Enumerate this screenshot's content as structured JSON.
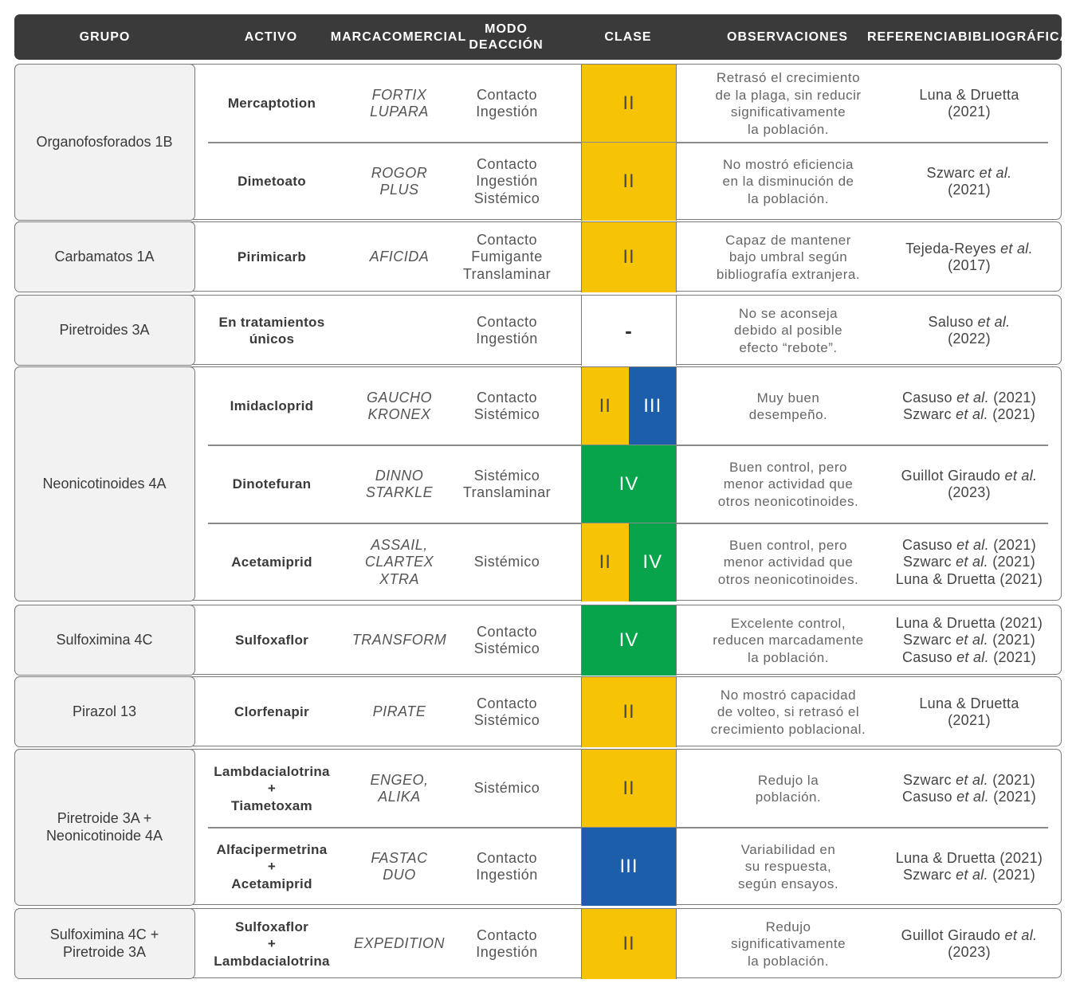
{
  "header": {
    "grupo": "GRUPO",
    "activo": "ACTIVO",
    "marca": [
      "MARCA",
      "COMERCIAL"
    ],
    "modo": [
      "MODO DE",
      "ACCIÓN"
    ],
    "clase": "CLASE",
    "observaciones": "OBSERVACIONES",
    "referencia": [
      "REFERENCIA",
      "BIBLIOGRÁFICA"
    ]
  },
  "class_colors": {
    "II": "#f7c405",
    "III": "#1c5eaa",
    "IV": "#07a44b"
  },
  "groups": [
    {
      "name": [
        "Organofosforados 1B"
      ],
      "rows": [
        {
          "activo": [
            "Mercaptotion"
          ],
          "marca": [
            "FORTIX",
            "LUPARA"
          ],
          "modo": [
            "Contacto",
            "Ingestión"
          ],
          "clase": [
            "II"
          ],
          "obs": [
            "Retrasó el crecimiento",
            "de la plaga, sin reducir",
            "significativamente",
            "la población."
          ],
          "ref": [
            [
              "Luna & Druetta"
            ],
            [
              "(2021)"
            ]
          ]
        },
        {
          "activo": [
            "Dimetoato"
          ],
          "marca": [
            "ROGOR",
            "PLUS"
          ],
          "modo": [
            "Contacto",
            "Ingestión",
            "Sistémico"
          ],
          "clase": [
            "II"
          ],
          "obs": [
            "No mostró eficiencia",
            "en la disminución de",
            "la población."
          ],
          "ref": [
            [
              "Szwarc ",
              "et al."
            ],
            [
              "(2021)"
            ]
          ]
        }
      ]
    },
    {
      "name": [
        "Carbamatos 1A"
      ],
      "rows": [
        {
          "activo": [
            "Pirimicarb"
          ],
          "marca": [
            "AFICIDA"
          ],
          "modo": [
            "Contacto",
            "Fumigante",
            "Translaminar"
          ],
          "clase": [
            "II"
          ],
          "obs": [
            "Capaz de mantener",
            "bajo umbral según",
            "bibliografía extranjera."
          ],
          "ref": [
            [
              "Tejeda-Reyes ",
              "et al."
            ],
            [
              "(2017)"
            ]
          ]
        }
      ]
    },
    {
      "name": [
        "Piretroides 3A"
      ],
      "rows": [
        {
          "activo": [
            "En tratamientos",
            "únicos"
          ],
          "marca": [],
          "modo": [
            "Contacto",
            "Ingestión"
          ],
          "clase": [
            "-"
          ],
          "obs": [
            "No se aconseja",
            "debido al posible",
            "efecto “rebote”."
          ],
          "ref": [
            [
              "Saluso ",
              "et al."
            ],
            [
              "(2022)"
            ]
          ]
        }
      ]
    },
    {
      "name": [
        "Neonicotinoides 4A"
      ],
      "rows": [
        {
          "activo": [
            "Imidacloprid"
          ],
          "marca": [
            "GAUCHO",
            "KRONEX"
          ],
          "modo": [
            "Contacto",
            "Sistémico"
          ],
          "clase": [
            "II",
            "III"
          ],
          "obs": [
            "Muy buen",
            "desempeño."
          ],
          "ref": [
            [
              "Casuso ",
              "et al.",
              " (2021)"
            ],
            [
              "Szwarc ",
              "et al.",
              " (2021)"
            ]
          ]
        },
        {
          "activo": [
            "Dinotefuran"
          ],
          "marca": [
            "DINNO",
            "STARKLE"
          ],
          "modo": [
            "Sistémico",
            "Translaminar"
          ],
          "clase": [
            "IV"
          ],
          "obs": [
            "Buen control, pero",
            "menor actividad que",
            "otros neonicotinoides."
          ],
          "ref": [
            [
              "Guillot Giraudo ",
              "et al."
            ],
            [
              "(2023)"
            ]
          ]
        },
        {
          "activo": [
            "Acetamiprid"
          ],
          "marca": [
            "ASSAIL,",
            "CLARTEX",
            "XTRA"
          ],
          "modo": [
            "Sistémico"
          ],
          "clase": [
            "II",
            "IV"
          ],
          "obs": [
            "Buen control, pero",
            "menor actividad que",
            "otros neonicotinoides."
          ],
          "ref": [
            [
              "Casuso ",
              "et al.",
              " (2021)"
            ],
            [
              "Szwarc ",
              "et al.",
              " (2021)"
            ],
            [
              "Luna & Druetta (2021)"
            ]
          ]
        }
      ]
    },
    {
      "name": [
        "Sulfoximina 4C"
      ],
      "rows": [
        {
          "activo": [
            "Sulfoxaflor"
          ],
          "marca": [
            "TRANSFORM"
          ],
          "modo": [
            "Contacto",
            "Sistémico"
          ],
          "clase": [
            "IV"
          ],
          "obs": [
            "Excelente control,",
            "reducen marcadamente",
            "la población."
          ],
          "ref": [
            [
              "Luna & Druetta (2021)"
            ],
            [
              "Szwarc ",
              "et al.",
              " (2021)"
            ],
            [
              "Casuso ",
              "et al.",
              " (2021)"
            ]
          ]
        }
      ]
    },
    {
      "name": [
        "Pirazol 13"
      ],
      "rows": [
        {
          "activo": [
            "Clorfenapir"
          ],
          "marca": [
            "PIRATE"
          ],
          "modo": [
            "Contacto",
            "Sistémico"
          ],
          "clase": [
            "II"
          ],
          "obs": [
            "No mostró capacidad",
            "de volteo, si retrasó el",
            "crecimiento poblacional."
          ],
          "ref": [
            [
              "Luna & Druetta"
            ],
            [
              "(2021)"
            ]
          ]
        }
      ]
    },
    {
      "name": [
        "Piretroide 3A +",
        "Neonicotinoide 4A"
      ],
      "rows": [
        {
          "activo": [
            "Lambdacialotrina",
            "+",
            "Tiametoxam"
          ],
          "marca": [
            "ENGEO,",
            "ALIKA"
          ],
          "modo": [
            "Sistémico"
          ],
          "clase": [
            "II"
          ],
          "obs": [
            "Redujo la",
            "población."
          ],
          "ref": [
            [
              "Szwarc ",
              "et al.",
              " (2021)"
            ],
            [
              "Casuso ",
              "et al.",
              " (2021)"
            ]
          ]
        },
        {
          "activo": [
            "Alfacipermetrina",
            "+",
            "Acetamiprid"
          ],
          "marca": [
            "FASTAC",
            "DUO"
          ],
          "modo": [
            "Contacto",
            "Ingestión"
          ],
          "clase": [
            "III"
          ],
          "obs": [
            "Variabilidad en",
            "su respuesta,",
            "según ensayos."
          ],
          "ref": [
            [
              "Luna & Druetta (2021)"
            ],
            [
              "Szwarc ",
              "et al.",
              " (2021)"
            ]
          ]
        }
      ]
    },
    {
      "name": [
        "Sulfoximina 4C +",
        "Piretroide 3A"
      ],
      "rows": [
        {
          "activo": [
            "Sulfoxaflor",
            "+",
            "Lambdacialotrina"
          ],
          "marca": [
            "EXPEDITION"
          ],
          "modo": [
            "Contacto",
            "Ingestión"
          ],
          "clase": [
            "II"
          ],
          "obs": [
            "Redujo",
            "significativamente",
            "la población."
          ],
          "ref": [
            [
              "Guillot Giraudo ",
              "et al."
            ],
            [
              "(2023)"
            ]
          ]
        }
      ]
    }
  ]
}
